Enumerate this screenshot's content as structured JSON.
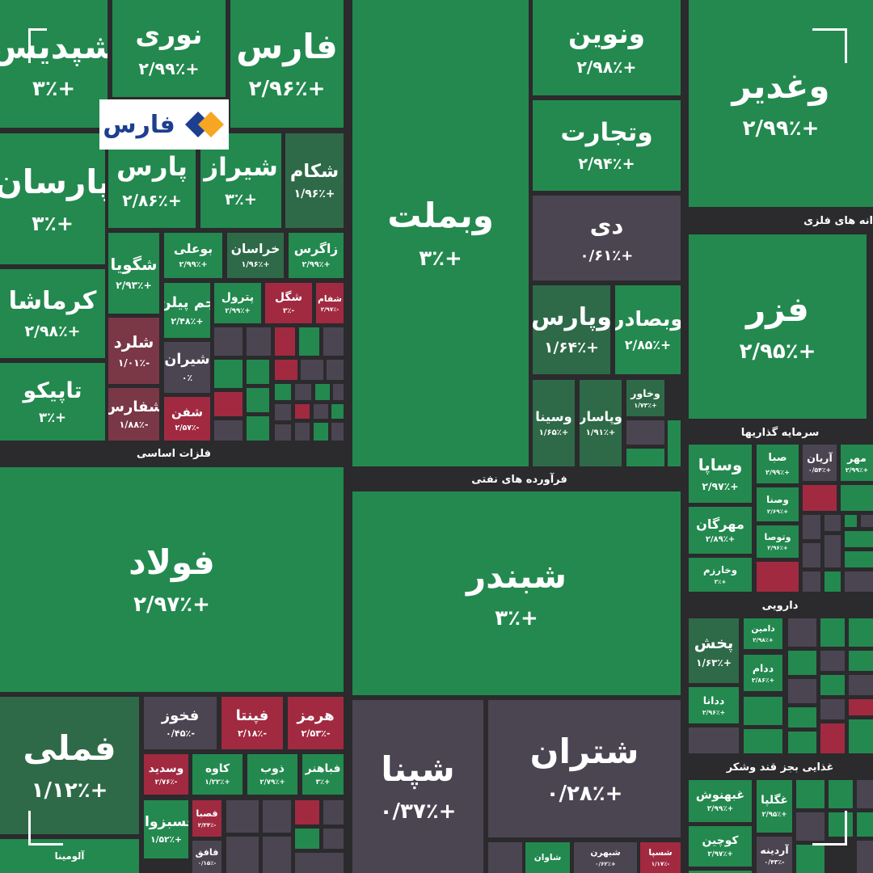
{
  "logo": "فارس",
  "sectors": [
    "فلزات اساسی",
    "فرآورده های نفتی",
    "انه های فلزی",
    "سرمایه گذاریها",
    "دارویی",
    "غذایی بجز قند وشکر"
  ],
  "tiles": [
    {
      "name": "شپدیس",
      "change": "+۳٪",
      "color": "#23894f"
    },
    {
      "name": "نوری",
      "change": "+۲/۹۹٪",
      "color": "#23894f"
    },
    {
      "name": "فارس",
      "change": "+۲/۹۶٪",
      "color": "#23894f"
    },
    {
      "name": "پارسان",
      "change": "+۳٪",
      "color": "#23894f"
    },
    {
      "name": "پارس",
      "change": "+۲/۸۶٪",
      "color": "#23894f"
    },
    {
      "name": "شیراز",
      "change": "+۳٪",
      "color": "#23894f"
    },
    {
      "name": "شکام",
      "change": "+۱/۹۶٪",
      "color": "#2e6a48"
    },
    {
      "name": "کرماشا",
      "change": "+۲/۹۸٪",
      "color": "#23894f"
    },
    {
      "name": "تاپیکو",
      "change": "+۳٪",
      "color": "#23894f"
    },
    {
      "name": "شگویا",
      "change": "+۲/۹۳٪",
      "color": "#23894f"
    },
    {
      "name": "بوعلی",
      "change": "+۲/۹۹٪",
      "color": "#23894f"
    },
    {
      "name": "خراسان",
      "change": "+۱/۹۶٪",
      "color": "#2e6a48"
    },
    {
      "name": "زاگرس",
      "change": "+۲/۹۹٪",
      "color": "#23894f"
    },
    {
      "name": "جم پیلن",
      "change": "+۲/۴۸٪",
      "color": "#23894f"
    },
    {
      "name": "پترول",
      "change": "+۲/۹۹٪",
      "color": "#23894f"
    },
    {
      "name": "شگل",
      "change": "-۳٪",
      "color": "#a12a41"
    },
    {
      "name": "شفام",
      "change": "-۲/۹۷٪",
      "color": "#a12a41"
    },
    {
      "name": "شلرد",
      "change": "-۱/۰۱٪",
      "color": "#7a3746"
    },
    {
      "name": "شیران",
      "change": "۰٪",
      "color": "#4b4552"
    },
    {
      "name": "شفارس",
      "change": "-۱/۸۸٪",
      "color": "#7a3746"
    },
    {
      "name": "شفن",
      "change": "-۲/۵۷٪",
      "color": "#a12a41"
    },
    {
      "name": "فولاد",
      "change": "+۲/۹۷٪",
      "color": "#23894f"
    },
    {
      "name": "فملی",
      "change": "+۱/۱۲٪",
      "color": "#2e6a48"
    },
    {
      "name": "فخوز",
      "change": "-۰/۴۵٪",
      "color": "#4b4552"
    },
    {
      "name": "فپنتا",
      "change": "-۲/۱۸٪",
      "color": "#a12a41"
    },
    {
      "name": "هرمز",
      "change": "-۲/۵۳٪",
      "color": "#a12a41"
    },
    {
      "name": "وسدید",
      "change": "-۲/۷۶٪",
      "color": "#a12a41"
    },
    {
      "name": "کاوه",
      "change": "+۱/۲۲٪",
      "color": "#23894f"
    },
    {
      "name": "ذوب",
      "change": "+۲/۷۹٪",
      "color": "#23894f"
    },
    {
      "name": "فباهنر",
      "change": "+۳٪",
      "color": "#23894f"
    },
    {
      "name": "فسبزوار",
      "change": "+۱/۵۲٪",
      "color": "#23894f"
    },
    {
      "name": "فصبا",
      "change": "-۲/۳۴٪",
      "color": "#a12a41"
    },
    {
      "name": "فافق",
      "change": "-۰/۱۵٪",
      "color": "#4b4552"
    },
    {
      "name": "آلومینا",
      "color": "#23894f"
    },
    {
      "name": "وبملت",
      "change": "+۳٪",
      "color": "#23894f"
    },
    {
      "name": "ونوین",
      "change": "+۲/۹۸٪",
      "color": "#23894f"
    },
    {
      "name": "وتجارت",
      "change": "+۲/۹۴٪",
      "color": "#23894f"
    },
    {
      "name": "دی",
      "change": "+۰/۶۱٪",
      "color": "#4b4552"
    },
    {
      "name": "وپارس",
      "change": "+۱/۶۴٪",
      "color": "#2e6a48"
    },
    {
      "name": "وبصادر",
      "change": "+۲/۸۵٪",
      "color": "#23894f"
    },
    {
      "name": "وسینا",
      "change": "+۱/۶۵٪",
      "color": "#2e6a48"
    },
    {
      "name": "وپاسار",
      "change": "+۱/۹۱٪",
      "color": "#2e6a48"
    },
    {
      "name": "وخاور",
      "change": "+۱/۷۳٪",
      "color": "#2e6a48"
    },
    {
      "name": "شبندر",
      "change": "+۳٪",
      "color": "#23894f"
    },
    {
      "name": "شپنا",
      "change": "+۰/۳۷٪",
      "color": "#4b4552"
    },
    {
      "name": "شتران",
      "change": "+۰/۲۸٪",
      "color": "#4b4552"
    },
    {
      "name": "شاوان",
      "color": "#23894f"
    },
    {
      "name": "شبهرن",
      "change": "+۰/۶۲٪",
      "color": "#4b4552"
    },
    {
      "name": "شسپا",
      "change": "-۱/۱۷٪",
      "color": "#a12a41"
    },
    {
      "name": "وغدیر",
      "change": "+۲/۹۹٪",
      "color": "#23894f"
    },
    {
      "name": "فزر",
      "change": "+۲/۹۵٪",
      "color": "#23894f"
    },
    {
      "name": "وساپا",
      "change": "+۲/۹۷٪",
      "color": "#23894f"
    },
    {
      "name": "صبا",
      "change": "+۲/۹۹٪",
      "color": "#23894f"
    },
    {
      "name": "آریان",
      "change": "+۰/۵۴٪",
      "color": "#4b4552"
    },
    {
      "name": "مهر",
      "change": "+۲/۹۹٪",
      "color": "#23894f"
    },
    {
      "name": "وصنا",
      "change": "+۲/۶۹٪",
      "color": "#23894f"
    },
    {
      "name": "مهرگان",
      "change": "+۲/۸۹٪",
      "color": "#23894f"
    },
    {
      "name": "وتوصا",
      "change": "+۲/۹۶٪",
      "color": "#23894f"
    },
    {
      "name": "وخارزم",
      "change": "+۳٪",
      "color": "#23894f"
    },
    {
      "name": "پخش",
      "change": "+۱/۶۳٪",
      "color": "#2e6a48"
    },
    {
      "name": "دامین",
      "change": "+۲/۹۸٪",
      "color": "#23894f"
    },
    {
      "name": "ددام",
      "change": "+۲/۸۶٪",
      "color": "#23894f"
    },
    {
      "name": "ددانا",
      "change": "+۲/۹۶٪",
      "color": "#23894f"
    },
    {
      "name": "غبهنوش",
      "change": "+۲/۹۹٪",
      "color": "#23894f"
    },
    {
      "name": "غگلپا",
      "change": "+۲/۹۵٪",
      "color": "#23894f"
    },
    {
      "name": "کوچین",
      "change": "+۲/۹۷٪",
      "color": "#23894f"
    },
    {
      "name": "آردینه",
      "change": "-۰/۴۳٪",
      "color": "#4b4552"
    }
  ]
}
